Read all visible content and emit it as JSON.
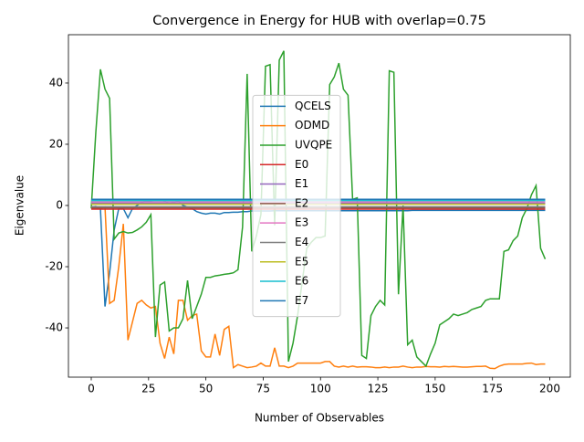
{
  "chart_data": {
    "type": "line",
    "title": "Convergence in Energy for HUB with overlap=0.75",
    "xlabel": "Number of Observables",
    "ylabel": "Eigenvalue",
    "xlim": [
      -9.95,
      208.95
    ],
    "ylim": [
      -56.1,
      55.8
    ],
    "xticks": [
      0,
      25,
      50,
      75,
      100,
      125,
      150,
      175,
      200
    ],
    "yticks": [
      -40,
      -20,
      0,
      20,
      40
    ],
    "grid": false,
    "legend": "center",
    "x": [
      0,
      2,
      4,
      6,
      8,
      10,
      12,
      14,
      16,
      18,
      20,
      22,
      24,
      26,
      28,
      30,
      32,
      34,
      36,
      38,
      40,
      42,
      44,
      46,
      48,
      50,
      52,
      54,
      56,
      58,
      60,
      62,
      64,
      66,
      68,
      70,
      72,
      74,
      76,
      78,
      80,
      82,
      84,
      86,
      88,
      90,
      92,
      94,
      96,
      98,
      100,
      102,
      104,
      106,
      108,
      110,
      112,
      114,
      116,
      118,
      120,
      122,
      124,
      126,
      128,
      130,
      132,
      134,
      136,
      138,
      140,
      142,
      144,
      146,
      148,
      150,
      152,
      154,
      156,
      158,
      160,
      162,
      164,
      166,
      168,
      170,
      172,
      174,
      176,
      178,
      180,
      182,
      184,
      186,
      188,
      190,
      192,
      194,
      196,
      198
    ],
    "series": [
      {
        "name": "QCELS",
        "color": "#1f77b4",
        "values": [
          -0.5,
          -0.3,
          -1,
          -33,
          -22,
          -8,
          -1,
          -1,
          -4,
          -1,
          0,
          1,
          1.5,
          1.5,
          2,
          2,
          1.5,
          0.5,
          1,
          1.5,
          0,
          -0.5,
          -1,
          -2,
          -2.5,
          -2.8,
          -2.5,
          -2.5,
          -2.8,
          -2.3,
          -2.3,
          -2.2,
          -2.2,
          -2,
          -2,
          -1.8,
          -1.8,
          -1.8,
          -1.8,
          -1.8,
          -1.7,
          -1.7,
          -1.7,
          -1.7,
          -1.7,
          -1.7,
          -1.7,
          -1.7,
          -1.7,
          -1.7,
          -1.7,
          -1.7,
          -1.7,
          -1.7,
          -1.7,
          -1.7,
          -1.7,
          -1.7,
          -1.7,
          -1.7,
          -1.7,
          -1.7,
          -1.7,
          -1.7,
          -1.7,
          -1.7,
          -1.7,
          -1.7,
          -1.7,
          -1.7,
          -1.6,
          -1.6,
          -1.6,
          -1.6,
          -1.6,
          -1.6,
          -1.6,
          -1.6,
          -1.6,
          -1.6,
          -1.6,
          -1.6,
          -1.6,
          -1.6,
          -1.6,
          -1.6,
          -1.6,
          -1.6,
          -1.6,
          -1.6,
          -1.6,
          -1.6,
          -1.6,
          -1.6,
          -1.6,
          -1.6,
          -1.6,
          -1.6,
          -1.6,
          -1.6
        ]
      },
      {
        "name": "ODMD",
        "color": "#ff7f0e",
        "values": [
          -1,
          -1,
          -1,
          -0.5,
          -32,
          -31,
          -20,
          -6,
          -44,
          -38,
          -32,
          -31,
          -32.5,
          -33.5,
          -33,
          -45,
          -50,
          -43,
          -48.5,
          -31,
          -31,
          -37.5,
          -36,
          -35.5,
          -47.5,
          -49.5,
          -49.5,
          -42,
          -49,
          -40.5,
          -39.5,
          -53,
          -52,
          -52.5,
          -53,
          -52.8,
          -52.5,
          -51.5,
          -52.5,
          -52.5,
          -46.5,
          -52.5,
          -52.5,
          -53,
          -52.5,
          -51.5,
          -51.5,
          -51.5,
          -51.5,
          -51.5,
          -51.5,
          -51,
          -51,
          -52.5,
          -52.8,
          -52.5,
          -52.8,
          -52.5,
          -52.8,
          -52.7,
          -52.7,
          -52.8,
          -53,
          -53,
          -52.8,
          -53,
          -52.8,
          -52.8,
          -52.5,
          -52.8,
          -53,
          -52.8,
          -52.8,
          -52.6,
          -52.7,
          -52.7,
          -52.8,
          -52.6,
          -52.7,
          -52.6,
          -52.7,
          -52.8,
          -52.8,
          -52.7,
          -52.6,
          -52.6,
          -52.5,
          -53.2,
          -53.3,
          -52.5,
          -52,
          -51.8,
          -51.8,
          -51.8,
          -51.8,
          -51.6,
          -51.5,
          -52,
          -51.8,
          -51.8
        ]
      },
      {
        "name": "UVQPE",
        "color": "#2ca02c",
        "values": [
          -1,
          24,
          44.5,
          38,
          35,
          -11,
          -9,
          -8.5,
          -9,
          -8.8,
          -8,
          -7,
          -5.5,
          -3,
          -43,
          -26,
          -25,
          -41,
          -40,
          -40,
          -37,
          -24.5,
          -37,
          -33,
          -29,
          -23.5,
          -23.5,
          -23,
          -22.8,
          -22.5,
          -22.3,
          -22,
          -21,
          -7,
          43,
          -15,
          -10,
          -3,
          45.5,
          46,
          -6.5,
          47.5,
          50.5,
          -51,
          -45,
          -36,
          -25,
          -14,
          -12,
          -10.5,
          -10.5,
          -10,
          39.5,
          42,
          46.5,
          38,
          36,
          2,
          2.5,
          -49,
          -50,
          -36,
          -33,
          -31,
          -32.5,
          44,
          43.5,
          -29,
          0,
          -45.5,
          -44,
          -49.5,
          -51,
          -52.5,
          -48.5,
          -45,
          -39,
          -38,
          -37,
          -35.5,
          -36,
          -35.5,
          -35,
          -34,
          -33.5,
          -33,
          -31,
          -30.5,
          -30.5,
          -30.5,
          -15,
          -14.5,
          -11.5,
          -10,
          -4,
          -1,
          3.5,
          6.5,
          -14,
          -17.5
        ]
      }
    ],
    "levels": [
      {
        "name": "E0",
        "color": "#d62728",
        "value": -1.2
      },
      {
        "name": "E1",
        "color": "#9467bd",
        "value": 0.8
      },
      {
        "name": "E2",
        "color": "#8c564b",
        "value": -0.8
      },
      {
        "name": "E3",
        "color": "#e377c2",
        "value": 1.2
      },
      {
        "name": "E4",
        "color": "#7f7f7f",
        "value": -0.4
      },
      {
        "name": "E5",
        "color": "#bcbd22",
        "value": 0.4
      },
      {
        "name": "E6",
        "color": "#17becf",
        "value": 1.6
      },
      {
        "name": "E7",
        "color": "#1f77b4",
        "value": 2
      }
    ]
  }
}
